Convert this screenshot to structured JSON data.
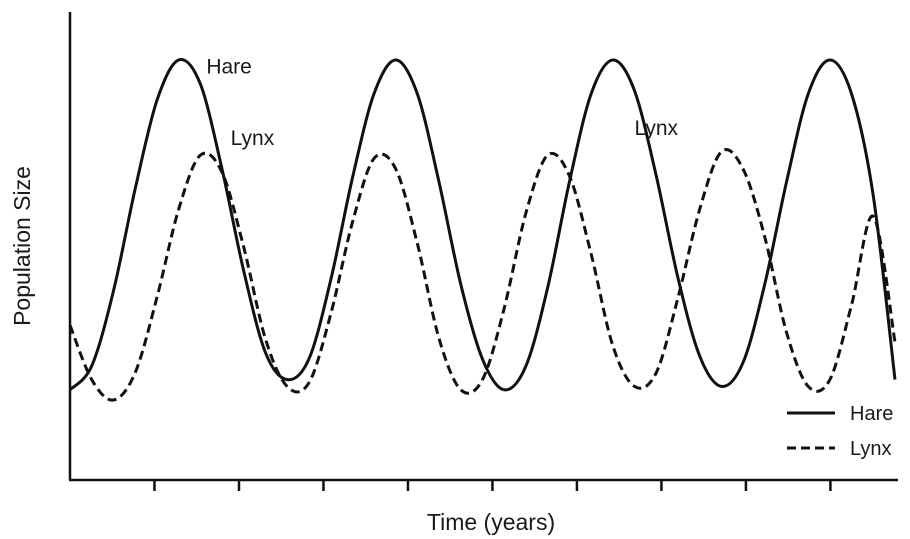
{
  "chart_data": {
    "type": "line",
    "xlabel": "Time (years)",
    "ylabel": "Population Size",
    "grid": false,
    "legend_position": "bottom-right",
    "x_tick_count": 9,
    "x_tick_labels": [],
    "y_tick_labels": [],
    "series": [
      {
        "name": "Hare",
        "style": "solid",
        "color": "#111111",
        "x": [
          0,
          0.25,
          0.5,
          0.75,
          1.0,
          1.25,
          1.5,
          1.75,
          2.0,
          2.25,
          2.5,
          2.75,
          3.0,
          3.25,
          3.5,
          3.75,
          4.0,
          4.25,
          4.5,
          4.75,
          5.0,
          5.25,
          5.5,
          5.75,
          6.0,
          6.25,
          6.5,
          6.75,
          7.0,
          7.25,
          7.5,
          7.75,
          8.0,
          8.25,
          8.5,
          8.75,
          9.0,
          9.25,
          9.5
        ],
        "y": [
          0.03,
          0.1,
          0.32,
          0.62,
          0.88,
          1.0,
          0.93,
          0.68,
          0.38,
          0.14,
          0.06,
          0.12,
          0.35,
          0.65,
          0.9,
          1.0,
          0.9,
          0.64,
          0.34,
          0.12,
          0.03,
          0.1,
          0.33,
          0.64,
          0.9,
          1.0,
          0.91,
          0.66,
          0.36,
          0.13,
          0.04,
          0.11,
          0.34,
          0.64,
          0.9,
          1.0,
          0.9,
          0.6,
          0.06
        ],
        "labels": [
          {
            "text": "Hare",
            "x": 1.57,
            "y": 0.96
          }
        ]
      },
      {
        "name": "Lynx",
        "style": "dashed",
        "color": "#111111",
        "x": [
          0,
          0.25,
          0.5,
          0.75,
          1.0,
          1.25,
          1.5,
          1.75,
          2.0,
          2.25,
          2.5,
          2.75,
          3.0,
          3.25,
          3.5,
          3.75,
          4.0,
          4.25,
          4.5,
          4.75,
          5.0,
          5.25,
          5.5,
          5.75,
          6.0,
          6.25,
          6.5,
          6.75,
          7.0,
          7.25,
          7.5,
          7.75,
          8.0,
          8.25,
          8.5,
          8.75,
          9.0,
          9.25,
          9.5
        ],
        "y": [
          0.22,
          0.06,
          0.0,
          0.08,
          0.3,
          0.56,
          0.72,
          0.67,
          0.45,
          0.18,
          0.04,
          0.05,
          0.25,
          0.52,
          0.71,
          0.68,
          0.46,
          0.18,
          0.03,
          0.06,
          0.27,
          0.55,
          0.72,
          0.66,
          0.43,
          0.16,
          0.04,
          0.08,
          0.3,
          0.56,
          0.73,
          0.68,
          0.48,
          0.2,
          0.04,
          0.06,
          0.28,
          0.54,
          0.17
        ],
        "labels": [
          {
            "text": "Lynx",
            "x": 1.85,
            "y": 0.75
          },
          {
            "text": "Lynx",
            "x": 6.5,
            "y": 0.78
          }
        ]
      }
    ]
  }
}
